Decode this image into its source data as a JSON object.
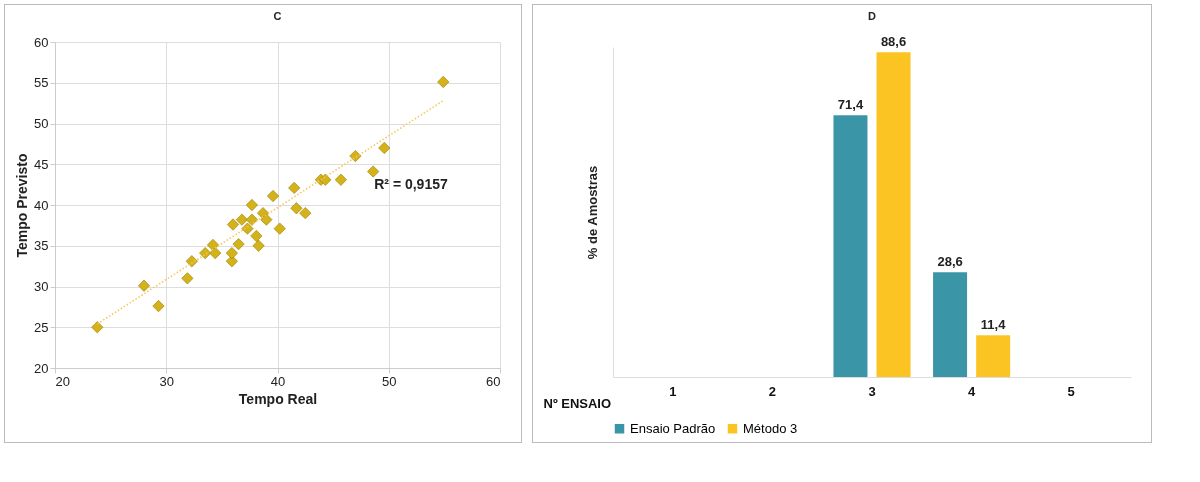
{
  "chart_data": [
    {
      "type": "scatter",
      "title": "C",
      "xlabel": "Tempo Real",
      "ylabel": "Tempo Previsto",
      "xlim": [
        20,
        60
      ],
      "xticks": [
        20,
        30,
        40,
        50,
        60
      ],
      "ylim": [
        20,
        60
      ],
      "yticks": [
        20,
        25,
        30,
        35,
        40,
        45,
        50,
        55,
        60
      ],
      "grid": true,
      "annotations": [
        "R² = 0,9157"
      ],
      "series": [
        {
          "type": "scatter",
          "marker": "diamond",
          "color": "#d4b21a",
          "x": [
            23.8,
            28.0,
            29.3,
            31.9,
            32.3,
            33.5,
            34.2,
            34.4,
            35.9,
            35.9,
            36.0,
            36.5,
            36.8,
            37.3,
            37.7,
            37.7,
            38.1,
            38.3,
            38.7,
            39.0,
            39.6,
            40.2,
            41.5,
            41.7,
            42.5,
            43.9,
            44.3,
            45.7,
            47.0,
            48.6,
            49.6,
            54.9
          ],
          "values": [
            25.0,
            30.1,
            27.6,
            31.0,
            33.1,
            34.1,
            35.1,
            34.1,
            33.1,
            34.1,
            37.6,
            35.2,
            38.2,
            37.1,
            40.0,
            38.2,
            36.2,
            35.0,
            39.0,
            38.2,
            41.1,
            37.1,
            42.1,
            39.6,
            39.0,
            43.1,
            43.1,
            43.1,
            46.0,
            44.1,
            47.0,
            55.1
          ]
        },
        {
          "type": "line",
          "color": "#f7c65a",
          "line_style": "dotted",
          "x": [
            23.8,
            54.9
          ],
          "values": [
            25.4,
            52.8
          ]
        }
      ]
    },
    {
      "type": "bar",
      "title": "D",
      "xlabel": "Nº ENSAIO",
      "ylabel": "% de Amostras",
      "legend": "bottom",
      "grid": false,
      "categories": [
        "1",
        "2",
        "3",
        "4",
        "5"
      ],
      "series": [
        {
          "name": "Ensaio Padrão",
          "color": "#3a96a6",
          "values": [
            null,
            null,
            71.4,
            28.6,
            null
          ],
          "value_labels": [
            null,
            null,
            "71,4",
            "28,6",
            null
          ]
        },
        {
          "name": "Método 3",
          "color": "#fcc422",
          "values": [
            null,
            null,
            88.6,
            11.4,
            null
          ],
          "value_labels": [
            null,
            null,
            "88,6",
            "11,4",
            null
          ]
        }
      ]
    }
  ]
}
